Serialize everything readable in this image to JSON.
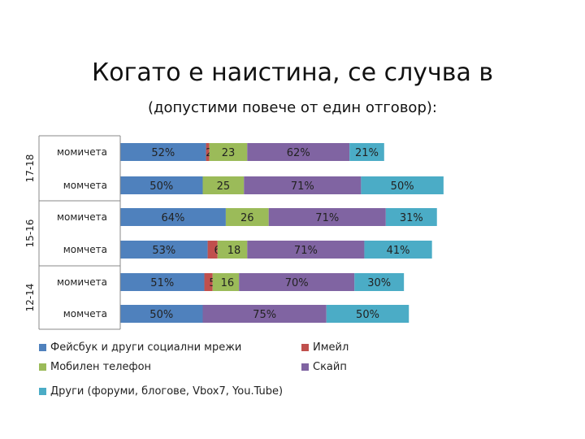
{
  "chart_data": {
    "type": "bar",
    "orientation": "horizontal",
    "stacked": true,
    "title": "Когато е наистина, се случва в",
    "subtitle": "(допустими повече от един отговор):",
    "groups": [
      "17-18",
      "15-16",
      "12-14"
    ],
    "categories": [
      "момичета",
      "момчета",
      "момичета",
      "момчета",
      "момичета",
      "момчета"
    ],
    "category_groups": [
      "17-18",
      "17-18",
      "15-16",
      "15-16",
      "12-14",
      "12-14"
    ],
    "series": [
      {
        "name": "Фейсбук и други социални мрежи",
        "color": "#4f81bd",
        "values": [
          52,
          50,
          64,
          53,
          51,
          50
        ],
        "labels": [
          "52%",
          "50%",
          "64%",
          "53%",
          "51%",
          "50%"
        ]
      },
      {
        "name": "Имейл",
        "color": "#c0504d",
        "values": [
          2,
          0,
          0,
          6,
          5,
          0
        ],
        "labels": [
          "2%",
          "",
          "",
          "6%",
          "5%",
          ""
        ]
      },
      {
        "name": "Мобилен телефон",
        "color": "#9bbb59",
        "values": [
          23,
          25,
          26,
          18,
          16,
          0
        ],
        "labels": [
          "23",
          "25",
          "26",
          "18",
          "16",
          ""
        ]
      },
      {
        "name": "Скайп",
        "color": "#8064a2",
        "values": [
          62,
          71,
          71,
          71,
          70,
          75
        ],
        "labels": [
          "62%",
          "71%",
          "71%",
          "71%",
          "70%",
          "75%"
        ]
      },
      {
        "name": "Други (форуми, блогове, Vbox7, YouTube)",
        "color": "#4bacc6",
        "values": [
          21,
          50,
          31,
          41,
          30,
          50
        ],
        "labels": [
          "21%",
          "50%",
          "31%",
          "41%",
          "30%",
          "50%"
        ]
      }
    ],
    "legend": [
      "Фейсбук и други социални мрежи",
      "Имейл",
      "Мобилен телефон",
      "Скайп",
      "Други (форуми, блогове, Vbox7, You.Tube)"
    ],
    "legend_position": "bottom",
    "grid": false
  }
}
